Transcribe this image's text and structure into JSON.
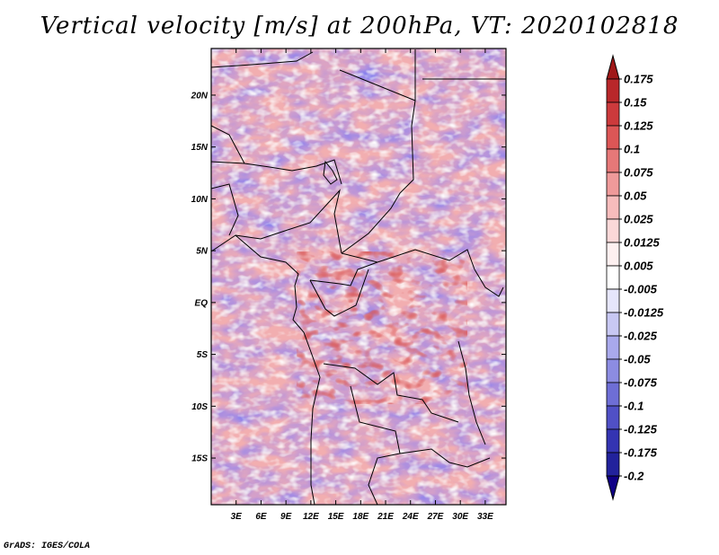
{
  "title": "Vertical velocity [m/s] at 200hPa, VT: 2020102818",
  "footer": "GrADS: IGES/COLA",
  "map": {
    "region": "Central Africa",
    "lat_labels": [
      "20N",
      "15N",
      "10N",
      "5N",
      "EQ",
      "5S",
      "10S",
      "15S"
    ],
    "lat_values": [
      20,
      15,
      10,
      5,
      0,
      -5,
      -10,
      -15
    ],
    "lon_labels": [
      "3E",
      "6E",
      "9E",
      "12E",
      "15E",
      "18E",
      "21E",
      "24E",
      "27E",
      "30E",
      "33E"
    ],
    "lon_values": [
      3,
      6,
      9,
      12,
      15,
      18,
      21,
      24,
      27,
      30,
      33
    ],
    "lon_range": [
      0,
      35.5
    ],
    "lat_range": [
      -19.5,
      24.5
    ]
  },
  "colorbar": {
    "unit": "m/s",
    "levels": [
      "0.175",
      "0.15",
      "0.125",
      "0.1",
      "0.075",
      "0.05",
      "0.025",
      "0.0125",
      "0.005",
      "-0.005",
      "-0.0125",
      "-0.025",
      "-0.05",
      "-0.075",
      "-0.1",
      "-0.125",
      "-0.175",
      "-0.2"
    ],
    "colors": [
      "#a01818",
      "#b8272a",
      "#cc3a3c",
      "#dc5656",
      "#e67878",
      "#ef9a9a",
      "#f7bcbc",
      "#fbd8d8",
      "#fdf0f0",
      "#ffffff",
      "#e6e6fb",
      "#c8c8f3",
      "#a9a9ec",
      "#8c8ce2",
      "#6e6ed6",
      "#5050c6",
      "#3434b2",
      "#22229c",
      "#100086"
    ]
  }
}
